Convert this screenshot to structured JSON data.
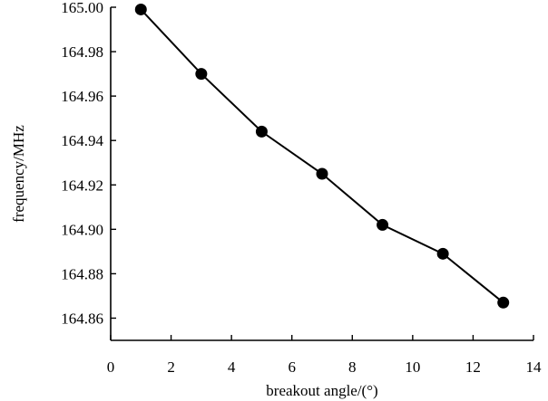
{
  "chart_data": {
    "type": "line",
    "title": "",
    "xlabel": "breakout angle/(°)",
    "ylabel": "frequency/MHz",
    "xlim": [
      0,
      14
    ],
    "ylim": [
      164.85,
      165.0
    ],
    "x_ticks": [
      0,
      2,
      4,
      6,
      8,
      10,
      12,
      14
    ],
    "y_ticks": [
      164.86,
      164.88,
      164.9,
      164.92,
      164.94,
      164.96,
      164.98,
      165.0
    ],
    "x_tick_labels": [
      "0",
      "2",
      "4",
      "6",
      "8",
      "10",
      "12",
      "14"
    ],
    "y_tick_labels": [
      "164.86",
      "164.88",
      "164.90",
      "164.92",
      "164.94",
      "164.96",
      "164.98",
      "165.00"
    ],
    "grid": false,
    "legend": "none",
    "series": [
      {
        "x": [
          1,
          3,
          5,
          7,
          9,
          11,
          13
        ],
        "y": [
          164.999,
          164.97,
          164.944,
          164.925,
          164.902,
          164.889,
          164.867
        ],
        "color": "#000000",
        "marker": "circle"
      }
    ]
  }
}
